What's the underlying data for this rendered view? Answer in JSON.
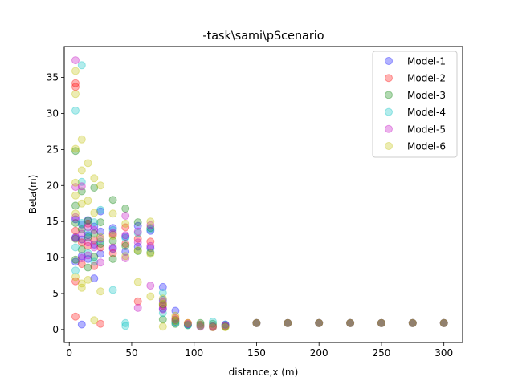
{
  "chart_data": {
    "type": "scatter",
    "title": "-task\\sami\\pScenario",
    "xlabel": "distance,x (m)",
    "ylabel": "Beta(m)",
    "xlim": [
      -4,
      315
    ],
    "ylim": [
      -1.8,
      39.3
    ],
    "xticks": [
      0,
      50,
      100,
      150,
      200,
      250,
      300
    ],
    "yticks": [
      0,
      5,
      10,
      15,
      20,
      25,
      30,
      35
    ],
    "legend_position": "top-right",
    "grid": false,
    "series": [
      {
        "name": "Model-1",
        "color": "#0000ff",
        "points": [
          [
            5,
            9.4
          ],
          [
            5,
            12.8
          ],
          [
            5,
            15.3
          ],
          [
            10,
            0.7
          ],
          [
            10,
            10.2
          ],
          [
            10,
            12.5
          ],
          [
            10,
            14.6
          ],
          [
            15,
            9.8
          ],
          [
            15,
            13.1
          ],
          [
            15,
            15.2
          ],
          [
            20,
            7.1
          ],
          [
            20,
            11.8
          ],
          [
            20,
            14.3
          ],
          [
            25,
            10.5
          ],
          [
            25,
            13.6
          ],
          [
            25,
            16.4
          ],
          [
            35,
            11.2
          ],
          [
            35,
            14.1
          ],
          [
            45,
            10.8
          ],
          [
            45,
            12.9
          ],
          [
            55,
            11.5
          ],
          [
            55,
            14.4
          ],
          [
            65,
            11.3
          ],
          [
            65,
            13.7
          ],
          [
            75,
            2.9
          ],
          [
            75,
            4.1
          ],
          [
            75,
            5.9
          ],
          [
            85,
            1.1
          ],
          [
            85,
            2.6
          ],
          [
            95,
            0.7
          ],
          [
            105,
            0.5
          ],
          [
            115,
            0.4
          ],
          [
            125,
            0.7
          ],
          [
            150,
            0.9
          ],
          [
            175,
            0.9
          ],
          [
            200,
            0.9
          ],
          [
            225,
            0.9
          ],
          [
            250,
            0.9
          ],
          [
            275,
            0.9
          ],
          [
            300,
            0.9
          ]
        ]
      },
      {
        "name": "Model-2",
        "color": "#ff0000",
        "points": [
          [
            5,
            1.8
          ],
          [
            5,
            6.7
          ],
          [
            5,
            13.7
          ],
          [
            5,
            33.7
          ],
          [
            5,
            34.2
          ],
          [
            10,
            9.1
          ],
          [
            10,
            12.1
          ],
          [
            15,
            11.6
          ],
          [
            15,
            14.7
          ],
          [
            20,
            8.8
          ],
          [
            20,
            12.4
          ],
          [
            25,
            0.8
          ],
          [
            25,
            11.4
          ],
          [
            35,
            10.6
          ],
          [
            35,
            13.2
          ],
          [
            45,
            11.9
          ],
          [
            45,
            14.2
          ],
          [
            55,
            3.9
          ],
          [
            55,
            12.6
          ],
          [
            65,
            12.2
          ],
          [
            75,
            3.3
          ],
          [
            85,
            1.6
          ],
          [
            95,
            0.9
          ],
          [
            105,
            0.7
          ],
          [
            115,
            0.5
          ],
          [
            125,
            0.5
          ],
          [
            150,
            0.9
          ],
          [
            175,
            0.9
          ],
          [
            200,
            0.9
          ],
          [
            225,
            0.9
          ],
          [
            250,
            0.9
          ],
          [
            275,
            0.9
          ],
          [
            300,
            0.9
          ]
        ]
      },
      {
        "name": "Model-3",
        "color": "#008000",
        "points": [
          [
            5,
            9.7
          ],
          [
            5,
            12.6
          ],
          [
            5,
            14.8
          ],
          [
            5,
            17.2
          ],
          [
            5,
            24.8
          ],
          [
            10,
            11.1
          ],
          [
            10,
            13.9
          ],
          [
            10,
            19.2
          ],
          [
            15,
            8.6
          ],
          [
            15,
            12.8
          ],
          [
            15,
            15.1
          ],
          [
            20,
            10.1
          ],
          [
            20,
            13.3
          ],
          [
            20,
            19.7
          ],
          [
            25,
            11.9
          ],
          [
            25,
            14.9
          ],
          [
            35,
            9.8
          ],
          [
            35,
            12.3
          ],
          [
            35,
            18.0
          ],
          [
            45,
            11.6
          ],
          [
            45,
            16.8
          ],
          [
            55,
            10.9
          ],
          [
            55,
            14.9
          ],
          [
            65,
            10.7
          ],
          [
            65,
            14.1
          ],
          [
            75,
            3.5
          ],
          [
            75,
            1.4
          ],
          [
            85,
            0.8
          ],
          [
            85,
            1.3
          ],
          [
            95,
            0.6
          ],
          [
            105,
            0.9
          ],
          [
            115,
            0.8
          ],
          [
            125,
            0.4
          ],
          [
            150,
            0.9
          ],
          [
            175,
            0.9
          ],
          [
            200,
            0.9
          ],
          [
            225,
            0.9
          ],
          [
            250,
            0.9
          ],
          [
            275,
            0.9
          ],
          [
            300,
            0.9
          ]
        ]
      },
      {
        "name": "Model-4",
        "color": "#00bfbf",
        "points": [
          [
            5,
            30.4
          ],
          [
            5,
            8.2
          ],
          [
            5,
            11.4
          ],
          [
            10,
            36.7
          ],
          [
            10,
            20.5
          ],
          [
            10,
            14.8
          ],
          [
            15,
            10.6
          ],
          [
            15,
            13.5
          ],
          [
            20,
            9.4
          ],
          [
            20,
            14.9
          ],
          [
            25,
            12.2
          ],
          [
            25,
            16.6
          ],
          [
            35,
            5.5
          ],
          [
            35,
            13.8
          ],
          [
            45,
            0.5
          ],
          [
            45,
            0.9
          ],
          [
            45,
            12.7
          ],
          [
            55,
            13.4
          ],
          [
            65,
            13.9
          ],
          [
            75,
            5.1
          ],
          [
            75,
            2.3
          ],
          [
            85,
            0.9
          ],
          [
            95,
            0.6
          ],
          [
            105,
            0.6
          ],
          [
            115,
            1.1
          ],
          [
            125,
            0.7
          ],
          [
            150,
            0.9
          ],
          [
            175,
            0.9
          ],
          [
            200,
            0.9
          ],
          [
            225,
            0.9
          ],
          [
            250,
            0.9
          ],
          [
            275,
            0.9
          ],
          [
            300,
            0.9
          ]
        ]
      },
      {
        "name": "Model-5",
        "color": "#bf00bf",
        "points": [
          [
            5,
            37.4
          ],
          [
            5,
            12.7
          ],
          [
            5,
            15.6
          ],
          [
            5,
            19.8
          ],
          [
            10,
            9.9
          ],
          [
            10,
            13.3
          ],
          [
            10,
            19.9
          ],
          [
            15,
            10.3
          ],
          [
            15,
            12.1
          ],
          [
            15,
            14.2
          ],
          [
            20,
            11.4
          ],
          [
            20,
            13.8
          ],
          [
            25,
            9.3
          ],
          [
            25,
            12.6
          ],
          [
            35,
            11.4
          ],
          [
            35,
            13.4
          ],
          [
            45,
            9.9
          ],
          [
            45,
            13.1
          ],
          [
            45,
            15.8
          ],
          [
            55,
            3.0
          ],
          [
            55,
            12.1
          ],
          [
            55,
            13.6
          ],
          [
            65,
            6.1
          ],
          [
            65,
            11.6
          ],
          [
            65,
            14.5
          ],
          [
            75,
            3.8
          ],
          [
            75,
            2.8
          ],
          [
            85,
            1.4
          ],
          [
            95,
            0.8
          ],
          [
            105,
            0.4
          ],
          [
            115,
            0.3
          ],
          [
            125,
            0.6
          ],
          [
            150,
            0.9
          ],
          [
            175,
            0.9
          ],
          [
            200,
            0.9
          ],
          [
            225,
            0.9
          ],
          [
            250,
            0.9
          ],
          [
            275,
            0.9
          ],
          [
            300,
            0.9
          ]
        ]
      },
      {
        "name": "Model-6",
        "color": "#bfbf00",
        "points": [
          [
            5,
            35.9
          ],
          [
            5,
            32.7
          ],
          [
            5,
            25.1
          ],
          [
            5,
            20.4
          ],
          [
            5,
            18.6
          ],
          [
            5,
            16.1
          ],
          [
            5,
            7.3
          ],
          [
            10,
            26.4
          ],
          [
            10,
            22.1
          ],
          [
            10,
            17.5
          ],
          [
            10,
            6.4
          ],
          [
            10,
            5.8
          ],
          [
            15,
            23.1
          ],
          [
            15,
            17.9
          ],
          [
            15,
            6.9
          ],
          [
            20,
            21.0
          ],
          [
            20,
            16.2
          ],
          [
            20,
            1.3
          ],
          [
            25,
            20.0
          ],
          [
            25,
            5.3
          ],
          [
            25,
            12.8
          ],
          [
            35,
            16.1
          ],
          [
            35,
            13.0
          ],
          [
            45,
            14.7
          ],
          [
            45,
            10.2
          ],
          [
            55,
            6.6
          ],
          [
            55,
            11.0
          ],
          [
            65,
            4.6
          ],
          [
            65,
            15.0
          ],
          [
            65,
            10.5
          ],
          [
            75,
            0.4
          ],
          [
            75,
            3.6
          ],
          [
            75,
            4.3
          ],
          [
            85,
            1.9
          ],
          [
            85,
            1.2
          ],
          [
            95,
            0.9
          ],
          [
            105,
            0.5
          ],
          [
            115,
            0.3
          ],
          [
            125,
            0.3
          ],
          [
            150,
            0.9
          ],
          [
            175,
            0.9
          ],
          [
            200,
            0.9
          ],
          [
            225,
            0.9
          ],
          [
            250,
            0.9
          ],
          [
            275,
            0.9
          ],
          [
            300,
            0.9
          ]
        ]
      }
    ]
  }
}
